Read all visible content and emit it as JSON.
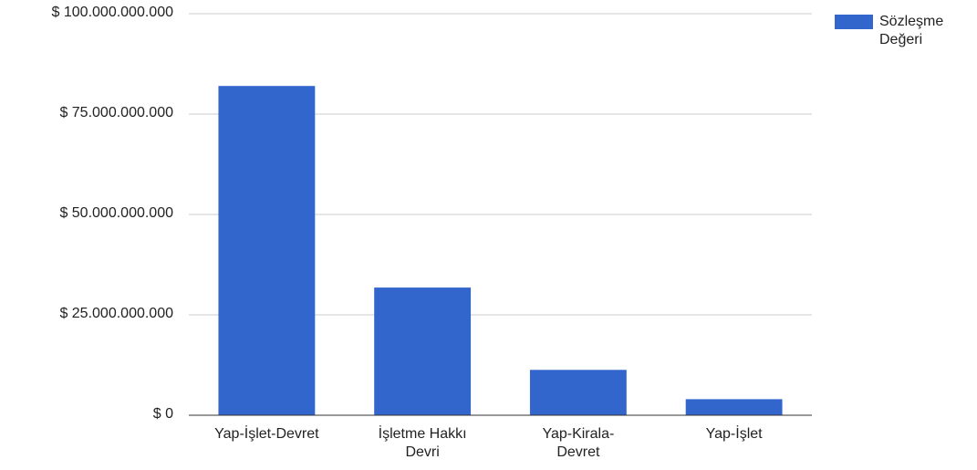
{
  "chart_data": {
    "type": "bar",
    "categories": [
      "Yap-İşlet-Devret",
      "İşletme Hakkı Devri",
      "Yap-Kirala-Devret",
      "Yap-İşlet"
    ],
    "series": [
      {
        "name": "Sözleşme Değeri",
        "color": "#3366cc",
        "values": [
          82000000000,
          31800000000,
          11300000000,
          4000000000
        ]
      }
    ],
    "ylim": [
      0,
      100000000000
    ],
    "yticks": [
      {
        "value": 0,
        "label": "$ 0"
      },
      {
        "value": 25000000000,
        "label": "$ 25.000.000.000"
      },
      {
        "value": 50000000000,
        "label": "$ 50.000.000.000"
      },
      {
        "value": 75000000000,
        "label": "$ 75.000.000.000"
      },
      {
        "value": 100000000000,
        "label": "$ 100.000.000.000"
      }
    ],
    "grid": true,
    "legend": "right"
  }
}
